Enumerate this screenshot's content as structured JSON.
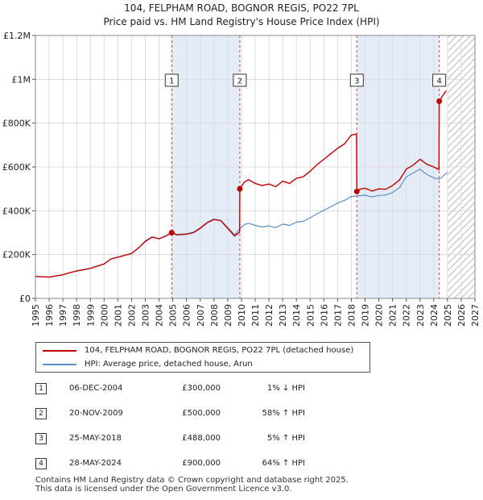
{
  "title": {
    "line1": "104, FELPHAM ROAD, BOGNOR REGIS, PO22 7PL",
    "line2": "Price paid vs. HM Land Registry's House Price Index (HPI)"
  },
  "chart_data": {
    "type": "line",
    "xlim": [
      1995,
      2027
    ],
    "ylim": [
      0,
      1200000
    ],
    "x_ticks": [
      1995,
      1996,
      1997,
      1998,
      1999,
      2000,
      2001,
      2002,
      2003,
      2004,
      2005,
      2006,
      2007,
      2008,
      2009,
      2010,
      2011,
      2012,
      2013,
      2014,
      2015,
      2016,
      2017,
      2018,
      2019,
      2020,
      2021,
      2022,
      2023,
      2024,
      2025,
      2026,
      2027
    ],
    "y_ticks": [
      {
        "value": 0,
        "label": "£0"
      },
      {
        "value": 200000,
        "label": "£200K"
      },
      {
        "value": 400000,
        "label": "£400K"
      },
      {
        "value": 600000,
        "label": "£600K"
      },
      {
        "value": 800000,
        "label": "£800K"
      },
      {
        "value": 1000000,
        "label": "£1M"
      },
      {
        "value": 1200000,
        "label": "£1.2M"
      }
    ],
    "shaded_ranges": [
      [
        2004.92,
        2009.88
      ],
      [
        2018.4,
        2024.4
      ]
    ],
    "hatched_from": 2025.0,
    "colors": {
      "property": "#c00000",
      "hpi": "#5b8fc9",
      "shade": "#e4ecf8",
      "vline": "#d04040"
    },
    "series": [
      {
        "name": "104, FELPHAM ROAD, BOGNOR REGIS, PO22 7PL (detached house)",
        "color": "#c00000",
        "x": [
          1995.0,
          1996.0,
          1997.0,
          1997.5,
          1998.0,
          1999.0,
          2000.0,
          2000.5,
          2001.0,
          2002.0,
          2002.5,
          2003.0,
          2003.5,
          2004.0,
          2004.5,
          2004.92,
          2005.3,
          2006.0,
          2006.5,
          2007.0,
          2007.5,
          2008.0,
          2008.5,
          2009.0,
          2009.5,
          2009.87,
          2009.88,
          2010.2,
          2010.5,
          2011.0,
          2011.5,
          2012.0,
          2012.5,
          2013.0,
          2013.5,
          2014.0,
          2014.5,
          2015.0,
          2015.5,
          2016.0,
          2016.5,
          2017.0,
          2017.5,
          2018.0,
          2018.38,
          2018.4,
          2018.6,
          2019.0,
          2019.5,
          2020.0,
          2020.5,
          2021.0,
          2021.5,
          2022.0,
          2022.5,
          2023.0,
          2023.5,
          2024.0,
          2024.38,
          2024.4,
          2024.6,
          2024.9
        ],
        "y": [
          100000,
          97000,
          108000,
          117000,
          125000,
          137000,
          157000,
          180000,
          188000,
          205000,
          230000,
          260000,
          280000,
          272000,
          285000,
          300000,
          290000,
          293000,
          300000,
          320000,
          345000,
          360000,
          355000,
          320000,
          285000,
          302000,
          500000,
          530000,
          542000,
          525000,
          515000,
          522000,
          510000,
          535000,
          525000,
          548000,
          555000,
          580000,
          610000,
          635000,
          660000,
          685000,
          705000,
          745000,
          750000,
          488000,
          498000,
          503000,
          490000,
          500000,
          498000,
          515000,
          540000,
          590000,
          608000,
          635000,
          612000,
          600000,
          588000,
          900000,
          920000,
          948000
        ]
      },
      {
        "name": "HPI: Average price, detached house, Arun",
        "color": "#5b8fc9",
        "x": [
          1995.0,
          1996.0,
          1997.0,
          1997.5,
          1998.0,
          1999.0,
          2000.0,
          2000.5,
          2001.0,
          2002.0,
          2002.5,
          2003.0,
          2003.5,
          2004.0,
          2004.5,
          2004.92,
          2005.3,
          2006.0,
          2006.5,
          2007.0,
          2007.5,
          2008.0,
          2008.5,
          2009.0,
          2009.5,
          2009.88,
          2010.2,
          2010.5,
          2011.0,
          2011.5,
          2012.0,
          2012.5,
          2013.0,
          2013.5,
          2014.0,
          2014.5,
          2015.0,
          2015.5,
          2016.0,
          2016.5,
          2017.0,
          2017.5,
          2018.0,
          2018.4,
          2019.0,
          2019.5,
          2020.0,
          2020.5,
          2021.0,
          2021.5,
          2022.0,
          2022.5,
          2023.0,
          2023.5,
          2024.0,
          2024.4,
          2025.0
        ],
        "y": [
          100000,
          97000,
          108000,
          117000,
          125000,
          137000,
          157000,
          180000,
          188000,
          205000,
          230000,
          262000,
          280000,
          272000,
          286000,
          301000,
          292000,
          295000,
          302000,
          322000,
          347000,
          362000,
          356000,
          323000,
          290000,
          318000,
          336000,
          343000,
          333000,
          326000,
          331000,
          323000,
          339000,
          333000,
          348000,
          352000,
          368000,
          386000,
          402000,
          418000,
          435000,
          447000,
          465000,
          468000,
          471000,
          463000,
          470000,
          472000,
          483000,
          505000,
          555000,
          572000,
          590000,
          565000,
          550000,
          544000,
          575000
        ]
      }
    ],
    "sales": [
      {
        "label": "1",
        "x": 2004.92,
        "y": 300000
      },
      {
        "label": "2",
        "x": 2009.88,
        "y": 500000
      },
      {
        "label": "3",
        "x": 2018.4,
        "y": 488000
      },
      {
        "label": "4",
        "x": 2024.4,
        "y": 900000
      }
    ]
  },
  "legend": {
    "property": "104, FELPHAM ROAD, BOGNOR REGIS, PO22 7PL (detached house)",
    "hpi": "HPI: Average price, detached house, Arun"
  },
  "transactions": [
    {
      "num": "1",
      "date": "06-DEC-2004",
      "price": "£300,000",
      "hpi": "1% ↓ HPI"
    },
    {
      "num": "2",
      "date": "20-NOV-2009",
      "price": "£500,000",
      "hpi": "58% ↑ HPI"
    },
    {
      "num": "3",
      "date": "25-MAY-2018",
      "price": "£488,000",
      "hpi": "5% ↑ HPI"
    },
    {
      "num": "4",
      "date": "28-MAY-2024",
      "price": "£900,000",
      "hpi": "64% ↑ HPI"
    }
  ],
  "footer": {
    "line1": "Contains HM Land Registry data © Crown copyright and database right 2025.",
    "line2": "This data is licensed under the Open Government Licence v3.0."
  }
}
